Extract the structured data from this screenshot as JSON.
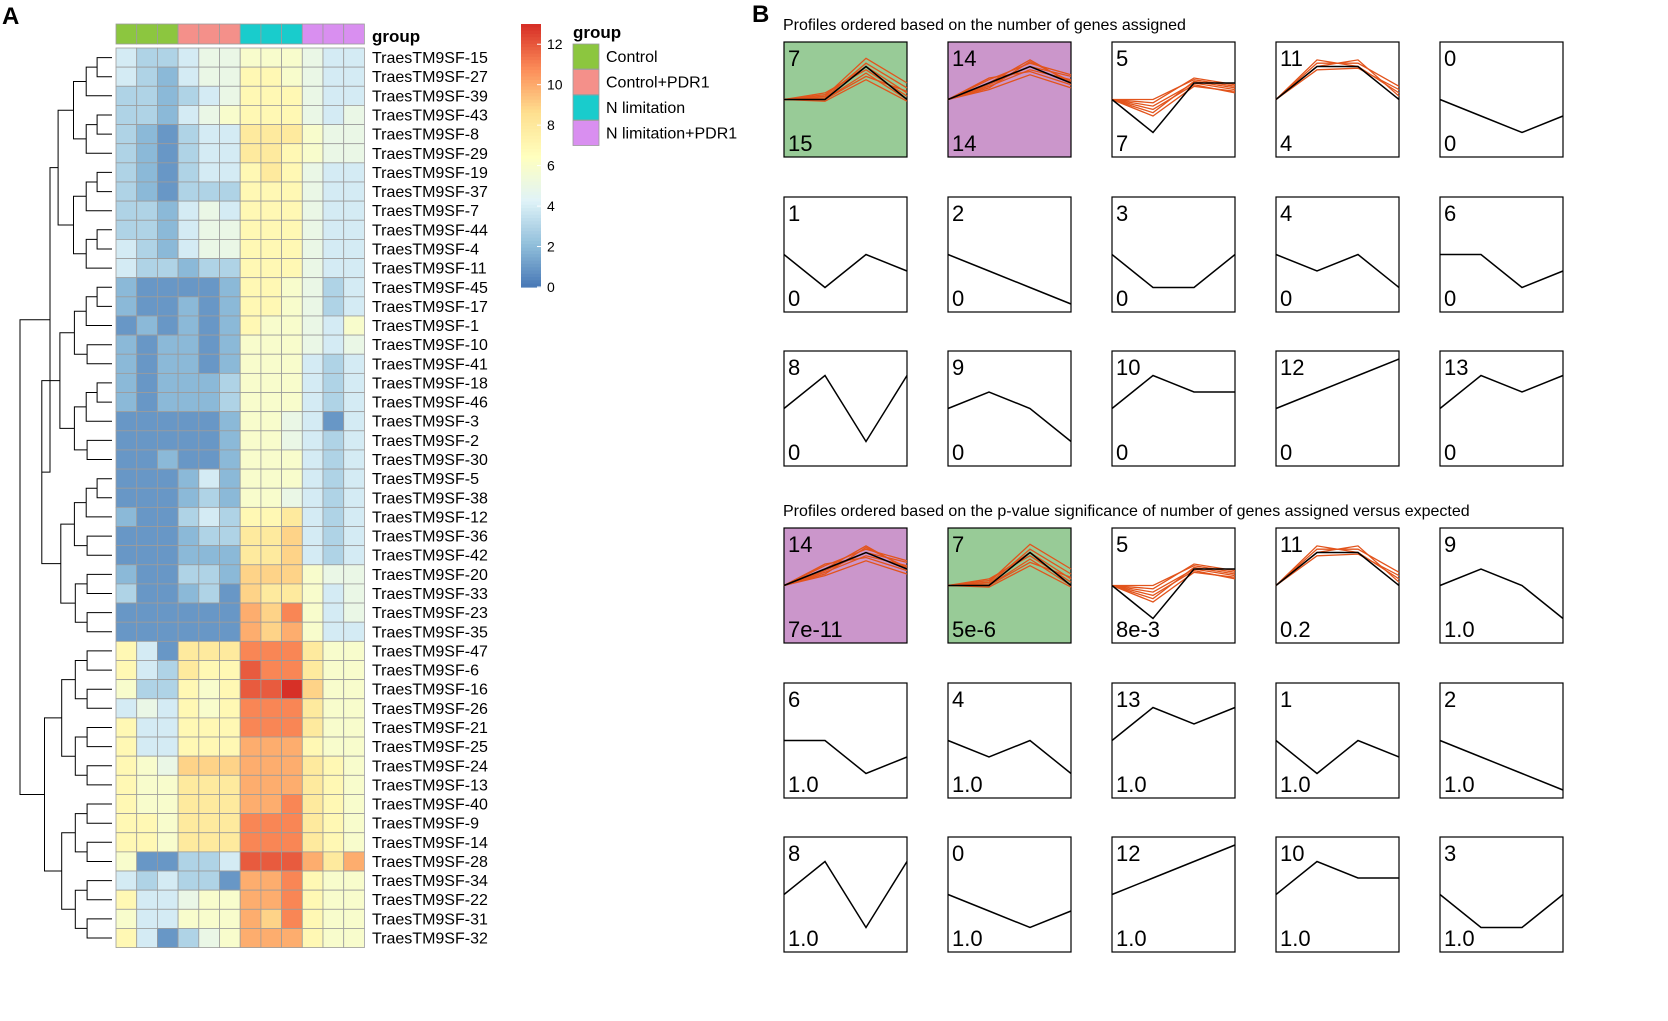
{
  "chart_data": [
    {
      "type": "heatmap",
      "panel_label": "A",
      "annotation_title": "group",
      "groups": [
        {
          "name": "Control",
          "color": "#8cc63f"
        },
        {
          "name": "Control+PDR1",
          "color": "#f4908a"
        },
        {
          "name": "N limitation",
          "color": "#19cccc"
        },
        {
          "name": "N limitation+PDR1",
          "color": "#d98ff0"
        }
      ],
      "column_groups": [
        0,
        0,
        0,
        1,
        1,
        1,
        2,
        2,
        2,
        3,
        3,
        3
      ],
      "colorbar": {
        "ticks": [
          0,
          2,
          4,
          6,
          8,
          10,
          12
        ],
        "min": 0,
        "max": 13,
        "colors": [
          "#4575b4",
          "#91bfdb",
          "#e0f3f8",
          "#ffffbf",
          "#fee090",
          "#fc8d59",
          "#d73027"
        ]
      },
      "rows": [
        "TraesTM9SF-15",
        "TraesTM9SF-27",
        "TraesTM9SF-39",
        "TraesTM9SF-43",
        "TraesTM9SF-8",
        "TraesTM9SF-29",
        "TraesTM9SF-19",
        "TraesTM9SF-37",
        "TraesTM9SF-7",
        "TraesTM9SF-44",
        "TraesTM9SF-4",
        "TraesTM9SF-11",
        "TraesTM9SF-45",
        "TraesTM9SF-17",
        "TraesTM9SF-1",
        "TraesTM9SF-10",
        "TraesTM9SF-41",
        "TraesTM9SF-18",
        "TraesTM9SF-46",
        "TraesTM9SF-3",
        "TraesTM9SF-2",
        "TraesTM9SF-30",
        "TraesTM9SF-5",
        "TraesTM9SF-38",
        "TraesTM9SF-12",
        "TraesTM9SF-36",
        "TraesTM9SF-42",
        "TraesTM9SF-20",
        "TraesTM9SF-33",
        "TraesTM9SF-23",
        "TraesTM9SF-35",
        "TraesTM9SF-47",
        "TraesTM9SF-6",
        "TraesTM9SF-16",
        "TraesTM9SF-26",
        "TraesTM9SF-21",
        "TraesTM9SF-25",
        "TraesTM9SF-24",
        "TraesTM9SF-13",
        "TraesTM9SF-40",
        "TraesTM9SF-9",
        "TraesTM9SF-14",
        "TraesTM9SF-28",
        "TraesTM9SF-34",
        "TraesTM9SF-22",
        "TraesTM9SF-31",
        "TraesTM9SF-32"
      ],
      "values": [
        [
          4,
          3,
          3,
          4,
          5,
          5,
          6,
          6,
          6,
          5,
          4,
          4
        ],
        [
          4,
          3,
          2,
          4,
          5,
          5,
          7,
          7,
          6,
          5,
          4,
          4
        ],
        [
          3,
          3,
          2,
          3,
          4,
          5,
          7,
          7,
          7,
          5,
          4,
          4
        ],
        [
          3,
          3,
          2,
          4,
          5,
          6,
          7,
          7,
          7,
          5,
          4,
          5
        ],
        [
          3,
          2,
          1,
          3,
          4,
          4,
          8,
          8,
          8,
          6,
          5,
          5
        ],
        [
          3,
          2,
          1,
          3,
          4,
          4,
          8,
          8,
          7,
          6,
          5,
          5
        ],
        [
          3,
          2,
          1,
          3,
          4,
          4,
          7,
          8,
          7,
          5,
          4,
          4
        ],
        [
          3,
          2,
          1,
          3,
          3,
          3,
          7,
          7,
          7,
          5,
          4,
          4
        ],
        [
          3,
          3,
          2,
          4,
          5,
          4,
          7,
          7,
          7,
          5,
          4,
          4
        ],
        [
          3,
          3,
          2,
          4,
          5,
          5,
          7,
          7,
          7,
          5,
          4,
          4
        ],
        [
          4,
          3,
          2,
          4,
          5,
          5,
          7,
          7,
          7,
          5,
          4,
          4
        ],
        [
          4,
          3,
          3,
          2,
          3,
          3,
          7,
          7,
          7,
          5,
          4,
          4
        ],
        [
          2,
          1,
          1,
          1,
          1,
          2,
          7,
          7,
          6,
          5,
          3,
          4
        ],
        [
          2,
          1,
          1,
          2,
          1,
          2,
          7,
          7,
          6,
          5,
          3,
          4
        ],
        [
          1,
          2,
          1,
          2,
          1,
          2,
          7,
          6,
          6,
          5,
          4,
          6
        ],
        [
          2,
          1,
          2,
          2,
          1,
          2,
          6,
          6,
          6,
          5,
          4,
          5
        ],
        [
          2,
          1,
          2,
          2,
          1,
          2,
          6,
          6,
          6,
          4,
          3,
          4
        ],
        [
          2,
          1,
          2,
          2,
          2,
          3,
          6,
          6,
          6,
          4,
          3,
          4
        ],
        [
          2,
          1,
          2,
          2,
          2,
          3,
          6,
          6,
          6,
          4,
          3,
          4
        ],
        [
          1,
          1,
          1,
          1,
          1,
          2,
          6,
          6,
          5,
          4,
          1,
          4
        ],
        [
          1,
          1,
          1,
          1,
          1,
          2,
          6,
          6,
          5,
          4,
          3,
          4
        ],
        [
          1,
          1,
          2,
          1,
          1,
          2,
          6,
          6,
          6,
          4,
          3,
          4
        ],
        [
          1,
          1,
          1,
          2,
          4,
          2,
          6,
          6,
          6,
          4,
          3,
          4
        ],
        [
          1,
          1,
          1,
          2,
          3,
          2,
          6,
          6,
          5,
          4,
          3,
          4
        ],
        [
          2,
          1,
          1,
          3,
          4,
          3,
          7,
          7,
          8,
          4,
          3,
          4
        ],
        [
          1,
          1,
          1,
          2,
          3,
          3,
          8,
          8,
          9,
          4,
          3,
          4
        ],
        [
          1,
          1,
          1,
          2,
          2,
          2,
          8,
          8,
          9,
          4,
          3,
          4
        ],
        [
          2,
          1,
          1,
          3,
          3,
          2,
          9,
          9,
          9,
          6,
          5,
          5
        ],
        [
          3,
          1,
          1,
          2,
          3,
          1,
          9,
          8,
          8,
          6,
          4,
          5
        ],
        [
          1,
          1,
          1,
          1,
          1,
          1,
          10,
          9,
          11,
          6,
          4,
          5
        ],
        [
          1,
          1,
          1,
          1,
          1,
          1,
          10,
          9,
          10,
          6,
          4,
          4
        ],
        [
          7,
          4,
          1,
          8,
          8,
          8,
          11,
          11,
          11,
          8,
          6,
          6
        ],
        [
          7,
          4,
          3,
          8,
          7,
          7,
          12,
          11,
          11,
          8,
          6,
          6
        ],
        [
          6,
          3,
          3,
          7,
          6,
          7,
          12,
          12,
          13,
          9,
          6,
          6
        ],
        [
          4,
          5,
          4,
          7,
          6,
          7,
          11,
          11,
          11,
          8,
          6,
          6
        ],
        [
          7,
          4,
          4,
          7,
          7,
          7,
          11,
          11,
          11,
          8,
          6,
          6
        ],
        [
          7,
          4,
          4,
          7,
          7,
          7,
          10,
          10,
          10,
          7,
          6,
          6
        ],
        [
          7,
          6,
          5,
          9,
          9,
          9,
          10,
          10,
          10,
          8,
          7,
          6
        ],
        [
          7,
          6,
          6,
          8,
          8,
          8,
          10,
          10,
          10,
          8,
          7,
          6
        ],
        [
          7,
          6,
          6,
          8,
          8,
          8,
          10,
          10,
          11,
          8,
          7,
          6
        ],
        [
          7,
          7,
          6,
          8,
          8,
          8,
          11,
          11,
          11,
          8,
          7,
          6
        ],
        [
          7,
          7,
          6,
          8,
          8,
          8,
          11,
          11,
          11,
          8,
          7,
          6
        ],
        [
          6,
          1,
          1,
          3,
          3,
          4,
          12,
          12,
          12,
          10,
          8,
          10
        ],
        [
          4,
          3,
          4,
          3,
          3,
          1,
          10,
          10,
          11,
          7,
          6,
          6
        ],
        [
          7,
          4,
          4,
          5,
          6,
          6,
          10,
          10,
          11,
          7,
          6,
          6
        ],
        [
          6,
          4,
          4,
          6,
          6,
          6,
          10,
          9,
          11,
          7,
          6,
          6
        ],
        [
          7,
          4,
          1,
          3,
          5,
          6,
          10,
          10,
          10,
          7,
          6,
          6
        ]
      ]
    },
    {
      "type": "line",
      "panel_label": "B",
      "sections": [
        {
          "title": "Profiles ordered based on the number of genes assigned",
          "profiles": [
            {
              "id": "7",
              "count": "15"
            },
            {
              "id": "14",
              "count": "14"
            },
            {
              "id": "5",
              "count": "7"
            },
            {
              "id": "11",
              "count": "4"
            },
            {
              "id": "0",
              "count": "0"
            },
            {
              "id": "1",
              "count": "0"
            },
            {
              "id": "2",
              "count": "0"
            },
            {
              "id": "3",
              "count": "0"
            },
            {
              "id": "4",
              "count": "0"
            },
            {
              "id": "6",
              "count": "0"
            },
            {
              "id": "8",
              "count": "0"
            },
            {
              "id": "9",
              "count": "0"
            },
            {
              "id": "10",
              "count": "0"
            },
            {
              "id": "12",
              "count": "0"
            },
            {
              "id": "13",
              "count": "0"
            }
          ]
        },
        {
          "title": "Profiles ordered based on the p-value significance of number of genes assigned versus expected",
          "profiles": [
            {
              "id": "14",
              "count": "7e-11"
            },
            {
              "id": "7",
              "count": "5e-6"
            },
            {
              "id": "5",
              "count": "8e-3"
            },
            {
              "id": "11",
              "count": "0.2"
            },
            {
              "id": "9",
              "count": "1.0"
            },
            {
              "id": "6",
              "count": "1.0"
            },
            {
              "id": "4",
              "count": "1.0"
            },
            {
              "id": "13",
              "count": "1.0"
            },
            {
              "id": "1",
              "count": "1.0"
            },
            {
              "id": "2",
              "count": "1.0"
            },
            {
              "id": "8",
              "count": "1.0"
            },
            {
              "id": "0",
              "count": "1.0"
            },
            {
              "id": "12",
              "count": "1.0"
            },
            {
              "id": "10",
              "count": "1.0"
            },
            {
              "id": "3",
              "count": "1.0"
            }
          ]
        }
      ],
      "model_profiles": {
        "0": [
          0,
          -1,
          -2,
          -1
        ],
        "1": [
          0,
          -2,
          0,
          -1
        ],
        "2": [
          0,
          -1,
          -2,
          -3
        ],
        "3": [
          0,
          -2,
          -2,
          0
        ],
        "4": [
          0,
          -1,
          0,
          -2
        ],
        "5": [
          0,
          -2,
          1,
          1
        ],
        "6": [
          0,
          0,
          -2,
          -1
        ],
        "7": [
          0,
          0,
          2,
          0
        ],
        "8": [
          0,
          2,
          -2,
          2
        ],
        "9": [
          0,
          1,
          0,
          -2
        ],
        "10": [
          0,
          2,
          1,
          1
        ],
        "11": [
          0,
          2,
          2,
          0
        ],
        "12": [
          0,
          1,
          2,
          3
        ],
        "13": [
          0,
          2,
          1,
          2
        ],
        "14": [
          0,
          1,
          2,
          1
        ]
      },
      "gene_traces": {
        "7": [
          [
            0,
            0,
            1.6,
            0
          ],
          [
            0,
            0.3,
            2.0,
            0.4
          ],
          [
            0,
            0.1,
            2.2,
            0.7
          ],
          [
            0,
            -0.1,
            1.2,
            -0.1
          ],
          [
            0,
            0.2,
            2.5,
            1.0
          ],
          [
            0,
            0.4,
            1.8,
            0.2
          ],
          [
            0,
            0,
            1.4,
            0.5
          ]
        ],
        "14": [
          [
            0,
            0.8,
            1.8,
            1.2
          ],
          [
            0,
            1.2,
            2.2,
            1.5
          ],
          [
            0,
            0.6,
            1.5,
            0.7
          ],
          [
            0,
            1.0,
            2.4,
            1.0
          ],
          [
            0,
            0.9,
            2.0,
            1.4
          ],
          [
            0,
            1.3,
            1.7,
            0.9
          ],
          [
            0,
            0.7,
            2.3,
            1.1
          ]
        ],
        "5": [
          [
            0,
            0,
            1.2,
            0.8
          ],
          [
            0,
            -0.4,
            1.0,
            0.6
          ],
          [
            0,
            -1.0,
            0.8,
            0.5
          ],
          [
            0,
            -0.2,
            1.3,
            0.9
          ],
          [
            0,
            -0.6,
            0.9,
            0.4
          ],
          [
            0,
            -0.8,
            1.1,
            0.7
          ]
        ],
        "11": [
          [
            0,
            2.4,
            2.0,
            0.4
          ],
          [
            0,
            2.2,
            2.2,
            0.8
          ],
          [
            0,
            1.8,
            1.9,
            0.6
          ],
          [
            0,
            2.0,
            2.4,
            0.2
          ]
        ]
      },
      "highlight_colors": {
        "7": "#98cb97",
        "14": "#cb96cb"
      },
      "trace_color": "#e2541c"
    }
  ]
}
